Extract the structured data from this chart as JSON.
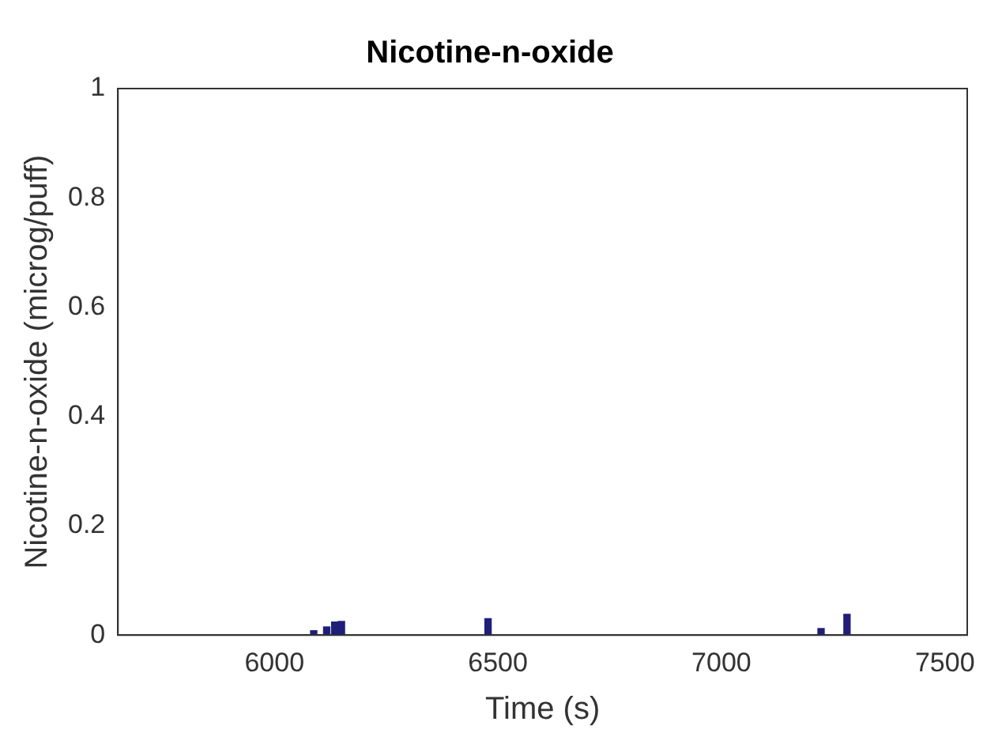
{
  "chart_data": {
    "type": "bar",
    "title": "Nicotine-n-oxide",
    "xlabel": "Time (s)",
    "ylabel": "Nicotine-n-oxide (microg/puff)",
    "x": [
      6088,
      6117,
      6135,
      6150,
      6478,
      7223,
      7281
    ],
    "values": [
      0.008,
      0.015,
      0.024,
      0.025,
      0.03,
      0.012,
      0.038
    ],
    "color": "#1f1f7a",
    "xlim": [
      5650,
      7550
    ],
    "xticks": [
      6000,
      6500,
      7000,
      7500
    ],
    "ylim": [
      0,
      1
    ],
    "yticks": [
      0,
      0.2,
      0.4,
      0.6,
      0.8,
      1
    ],
    "grid": false,
    "legend": false
  }
}
